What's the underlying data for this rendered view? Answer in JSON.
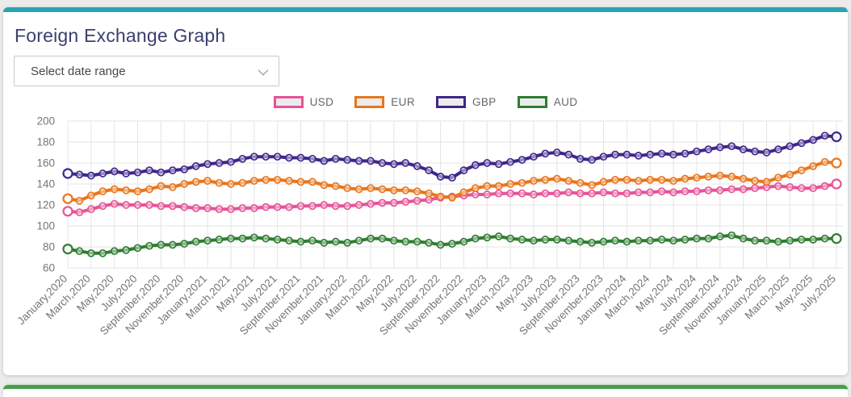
{
  "card": {
    "title": "Foreign Exchange Graph",
    "accent_color": "#2aa5b2"
  },
  "controls": {
    "date_range_placeholder": "Select date range"
  },
  "footer_card": {
    "accent_color": "#43a047"
  },
  "chart_data": {
    "type": "line",
    "title": "Foreign Exchange Graph",
    "xlabel": "",
    "ylabel": "",
    "ylim": [
      60,
      200
    ],
    "yticks": [
      60,
      80,
      100,
      120,
      140,
      160,
      180,
      200
    ],
    "grid": true,
    "legend_position": "top",
    "months_total": 67,
    "x_tick_every": 2,
    "x_tick_labels": [
      "January,2020",
      "March,2020",
      "May,2020",
      "July,2020",
      "September,2020",
      "November,2020",
      "January,2021",
      "March,2021",
      "May,2021",
      "July,2021",
      "September,2021",
      "November,2021",
      "January,2022",
      "March,2022",
      "May,2022",
      "July,2022",
      "September,2022",
      "November,2022",
      "January,2023",
      "March,2023",
      "May,2023",
      "July,2023",
      "September,2023",
      "November,2023",
      "January,2024",
      "March,2024",
      "May,2024",
      "July,2024",
      "September,2024",
      "November,2024",
      "January,2025",
      "March,2025",
      "May,2025",
      "July,2025"
    ],
    "series": [
      {
        "name": "USD",
        "color": "#e75397",
        "values": [
          114,
          113,
          116,
          119,
          121,
          120,
          120,
          120,
          119,
          119,
          118,
          117,
          117,
          116,
          116,
          117,
          117,
          118,
          118,
          118,
          119,
          119,
          120,
          119,
          119,
          120,
          121,
          122,
          122,
          123,
          124,
          125,
          127,
          128,
          129,
          130,
          130,
          131,
          131,
          131,
          130,
          131,
          131,
          132,
          131,
          131,
          132,
          131,
          131,
          132,
          132,
          133,
          132,
          133,
          133,
          134,
          134,
          135,
          135,
          136,
          137,
          138,
          137,
          136,
          136,
          138,
          140
        ]
      },
      {
        "name": "EUR",
        "color": "#e8761c",
        "values": [
          126,
          124,
          129,
          133,
          135,
          134,
          133,
          135,
          138,
          137,
          140,
          142,
          143,
          141,
          140,
          141,
          143,
          144,
          144,
          143,
          142,
          142,
          139,
          138,
          136,
          135,
          136,
          135,
          134,
          134,
          133,
          131,
          128,
          127,
          132,
          136,
          138,
          138,
          140,
          141,
          143,
          144,
          145,
          143,
          141,
          139,
          142,
          144,
          144,
          143,
          144,
          144,
          143,
          145,
          146,
          147,
          148,
          147,
          145,
          143,
          142,
          146,
          149,
          153,
          157,
          161,
          160
        ]
      },
      {
        "name": "GBP",
        "color": "#3e278b",
        "values": [
          150,
          149,
          148,
          150,
          152,
          150,
          151,
          153,
          151,
          153,
          154,
          157,
          159,
          160,
          161,
          164,
          166,
          166,
          166,
          165,
          165,
          164,
          162,
          164,
          163,
          162,
          162,
          160,
          159,
          160,
          157,
          153,
          147,
          146,
          153,
          158,
          160,
          159,
          161,
          163,
          166,
          169,
          170,
          168,
          164,
          163,
          166,
          168,
          168,
          167,
          168,
          169,
          168,
          169,
          171,
          173,
          175,
          176,
          173,
          171,
          170,
          173,
          176,
          179,
          182,
          186,
          185
        ]
      },
      {
        "name": "AUD",
        "color": "#2f7d32",
        "values": [
          78,
          76,
          74,
          74,
          76,
          77,
          79,
          81,
          82,
          82,
          83,
          85,
          86,
          87,
          88,
          88,
          89,
          88,
          87,
          86,
          85,
          86,
          84,
          85,
          84,
          86,
          88,
          88,
          86,
          85,
          85,
          84,
          82,
          83,
          85,
          88,
          89,
          90,
          88,
          87,
          86,
          87,
          87,
          86,
          85,
          84,
          85,
          86,
          85,
          86,
          86,
          87,
          86,
          87,
          88,
          88,
          90,
          91,
          88,
          86,
          86,
          85,
          86,
          87,
          87,
          88,
          88
        ]
      }
    ],
    "style": {
      "grid_color": "#e4e4e4",
      "tick_label_color": "#757575",
      "legend_text_color": "#666666"
    }
  }
}
